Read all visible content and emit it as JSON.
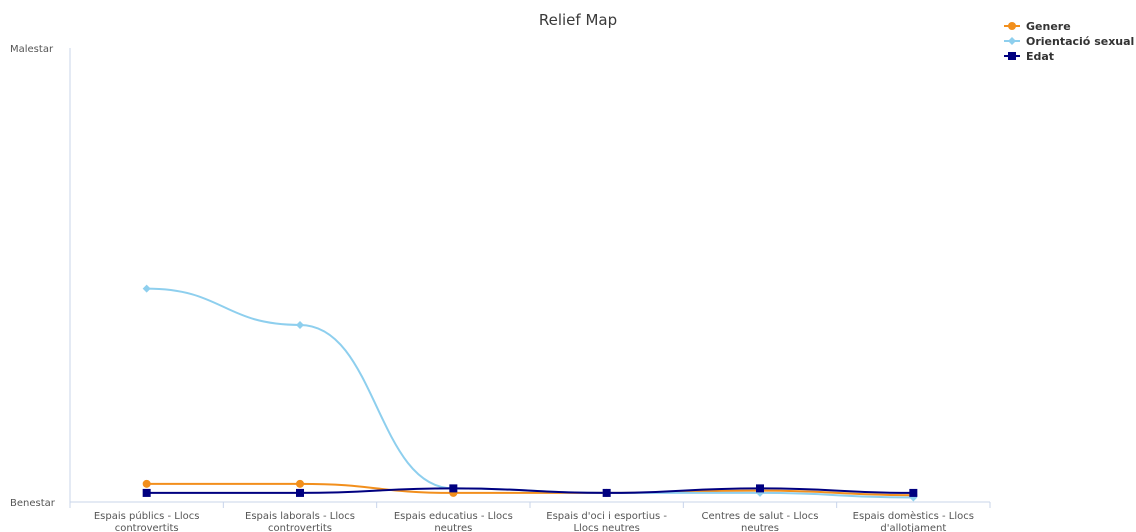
{
  "chart_data": {
    "type": "line",
    "title": "Relief Map",
    "y_categories": [
      "Benestar",
      "Malestar"
    ],
    "ylim": [
      0,
      100
    ],
    "x": [
      [
        "Espais públics - Llocs",
        "controvertits"
      ],
      [
        "Espais laborals - Llocs",
        "controvertits"
      ],
      [
        "Espais educatius - Llocs",
        "neutres"
      ],
      [
        "Espais d'oci i esportius -",
        "Llocs neutres"
      ],
      [
        "Centres de salut - Llocs",
        "neutres"
      ],
      [
        "Espais domèstics - Llocs",
        "d'allotjament"
      ]
    ],
    "series": [
      {
        "name": "Genere",
        "color": "#f28f1c",
        "marker": "circle",
        "values": [
          4,
          4,
          2,
          2,
          2.5,
          1.5
        ]
      },
      {
        "name": "Orientació sexual",
        "color": "#8ecfee",
        "marker": "diamond",
        "values": [
          47,
          39,
          3,
          2,
          2,
          1
        ]
      },
      {
        "name": "Edat",
        "color": "#000080",
        "marker": "square",
        "values": [
          2,
          2,
          3,
          2,
          3,
          2
        ]
      }
    ],
    "legend": "top-right",
    "grid": false
  }
}
